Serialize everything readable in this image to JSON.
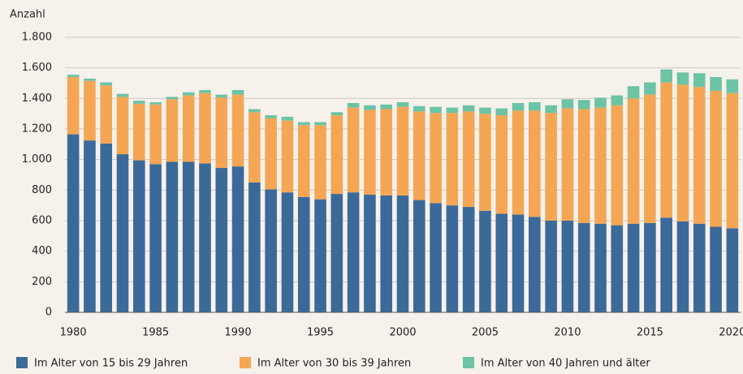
{
  "chart_data": {
    "type": "stacked_bar",
    "y_label": "Anzahl",
    "categories": [
      "1980",
      null,
      null,
      null,
      null,
      "1985",
      null,
      null,
      null,
      null,
      "1990",
      null,
      null,
      null,
      null,
      "1995",
      null,
      null,
      null,
      null,
      "2000",
      null,
      null,
      null,
      null,
      "2005",
      null,
      null,
      null,
      null,
      "2010",
      null,
      null,
      null,
      null,
      "2015",
      null,
      null,
      null,
      null,
      "2020"
    ],
    "series": [
      {
        "name": "Im Alter von 15 bis 29 Jahren",
        "color": "#3b6a99",
        "values": [
          1165,
          1125,
          1105,
          1035,
          995,
          970,
          985,
          985,
          975,
          945,
          955,
          850,
          805,
          785,
          755,
          740,
          775,
          785,
          770,
          765,
          765,
          735,
          715,
          700,
          690,
          665,
          645,
          640,
          625,
          600,
          600,
          585,
          580,
          570,
          580,
          585,
          620,
          595,
          580,
          560,
          550
        ]
      },
      {
        "name": "Im Alter von 30 bis 39 Jahren",
        "color": "#f5a655",
        "values": [
          375,
          390,
          380,
          375,
          370,
          390,
          410,
          435,
          460,
          460,
          470,
          460,
          465,
          470,
          470,
          485,
          515,
          555,
          555,
          565,
          580,
          580,
          590,
          605,
          625,
          635,
          645,
          680,
          695,
          705,
          735,
          745,
          760,
          785,
          820,
          840,
          885,
          895,
          895,
          890,
          885
        ]
      },
      {
        "name": "Im Alter von 40 Jahren und älter",
        "color": "#6cc3a6",
        "values": [
          15,
          15,
          20,
          20,
          20,
          15,
          15,
          20,
          20,
          20,
          30,
          20,
          20,
          25,
          20,
          20,
          20,
          30,
          30,
          30,
          30,
          35,
          40,
          35,
          40,
          40,
          45,
          50,
          55,
          50,
          60,
          60,
          65,
          65,
          80,
          80,
          85,
          80,
          90,
          90,
          90
        ]
      }
    ],
    "ylim": [
      0,
      1800
    ],
    "yticks": [
      0,
      200,
      400,
      600,
      800,
      {
        "value": 1000,
        "label": "1.000"
      },
      {
        "value": 1200,
        "label": "1.200"
      },
      {
        "value": 1400,
        "label": "1.400"
      },
      {
        "value": 1600,
        "label": "1.600"
      },
      {
        "value": 1800,
        "label": "1.800"
      }
    ],
    "grid": true
  }
}
